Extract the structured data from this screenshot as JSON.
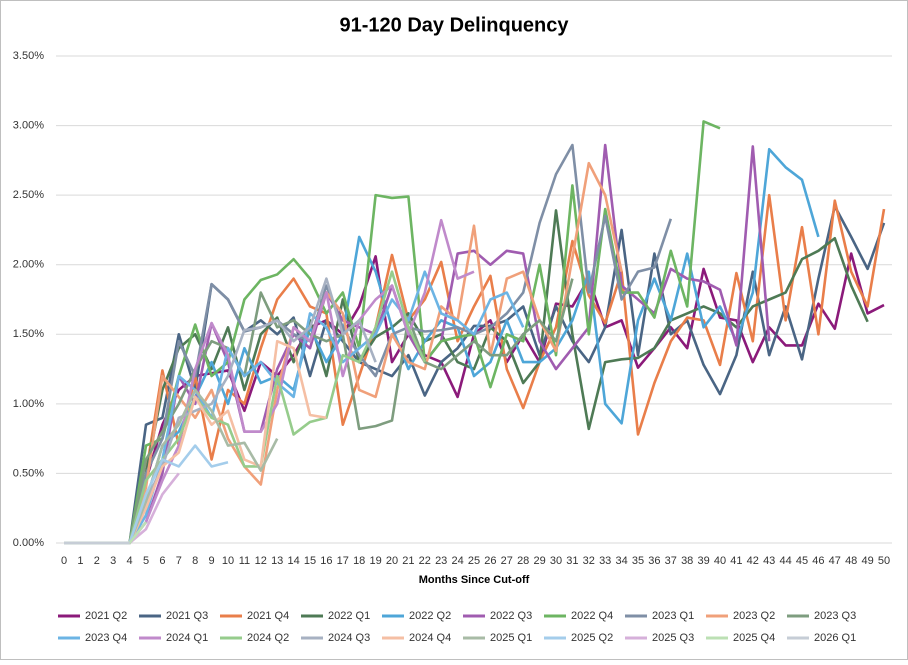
{
  "chart_data": {
    "type": "line",
    "title": "91-120 Day Delinquency",
    "x_label": "Months Since Cut-off",
    "x": [
      0,
      1,
      2,
      3,
      4,
      5,
      6,
      7,
      8,
      9,
      10,
      11,
      12,
      13,
      14,
      15,
      16,
      17,
      18,
      19,
      20,
      21,
      22,
      23,
      24,
      25,
      26,
      27,
      28,
      29,
      30,
      31,
      32,
      33,
      34,
      35,
      36,
      37,
      38,
      39,
      40,
      41,
      42,
      43,
      44,
      45,
      46,
      47,
      48,
      49,
      50
    ],
    "xlim": [
      0,
      50
    ],
    "ylim": [
      0,
      3.5
    ],
    "yticks": [
      {
        "value": 0,
        "label": "0.00%"
      },
      {
        "value": 0.5,
        "label": "0.50%"
      },
      {
        "value": 1,
        "label": "1.00%"
      },
      {
        "value": 1.5,
        "label": "1.50%"
      },
      {
        "value": 2,
        "label": "2.00%"
      },
      {
        "value": 2.5,
        "label": "2.50%"
      },
      {
        "value": 3,
        "label": "3.00%"
      },
      {
        "value": 3.5,
        "label": "3.50%"
      }
    ],
    "grid": true,
    "legend": "bottom",
    "series": [
      {
        "name": "2021 Q2",
        "color": "#8b1a7a",
        "values": [
          0,
          0,
          0,
          0,
          0,
          0.45,
          0.85,
          1.1,
          1.2,
          1.22,
          1.24,
          0.95,
          1.3,
          1.2,
          1.35,
          1.55,
          1.6,
          1.5,
          1.7,
          2.06,
          1.3,
          1.5,
          1.35,
          1.3,
          1.05,
          1.5,
          1.6,
          1.3,
          1.5,
          1.3,
          1.72,
          1.7,
          1.9,
          1.55,
          1.6,
          1.26,
          1.4,
          1.55,
          1.4,
          1.97,
          1.62,
          1.6,
          1.3,
          1.55,
          1.42,
          1.42,
          1.72,
          1.54,
          2.08,
          1.65,
          1.71
        ]
      },
      {
        "name": "2021 Q3",
        "color": "#4a6584",
        "values": [
          0,
          0,
          0,
          0,
          0,
          0.85,
          0.9,
          1.5,
          1.1,
          1.86,
          1.75,
          1.52,
          1.6,
          1.5,
          1.62,
          1.2,
          1.6,
          1.45,
          1.3,
          1.25,
          1.2,
          1.35,
          1.06,
          1.3,
          1.4,
          1.56,
          1.56,
          1.6,
          1.7,
          1.35,
          1.7,
          1.45,
          1.3,
          1.55,
          2.25,
          1.35,
          2.08,
          1.5,
          1.6,
          1.28,
          1.07,
          1.35,
          1.95,
          1.35,
          1.7,
          1.32,
          1.9,
          2.42,
          2.2,
          1.97,
          2.3
        ]
      },
      {
        "name": "2021 Q4",
        "color": "#e97e4a",
        "values": [
          0,
          0,
          0,
          0,
          0,
          0.5,
          1.24,
          0.7,
          1.2,
          0.6,
          1.1,
          1.0,
          1.4,
          1.75,
          1.9,
          1.7,
          1.65,
          0.85,
          1.2,
          1.55,
          2.07,
          1.6,
          1.75,
          2.02,
          1.45,
          1.7,
          1.92,
          1.25,
          0.97,
          1.3,
          1.55,
          2.17,
          1.78,
          1.58,
          1.95,
          0.78,
          1.15,
          1.45,
          1.62,
          1.6,
          1.28,
          1.94,
          1.45,
          2.5,
          1.6,
          2.27,
          1.5,
          2.46,
          1.95,
          1.7,
          2.4
        ]
      },
      {
        "name": "2022 Q1",
        "color": "#4e7a55",
        "values": [
          0,
          0,
          0,
          0,
          0,
          0.5,
          1.1,
          1.4,
          1.5,
          1.25,
          1.55,
          1.1,
          1.5,
          1.62,
          1.3,
          1.6,
          1.2,
          1.75,
          1.3,
          1.48,
          1.55,
          1.65,
          1.45,
          1.5,
          1.3,
          1.25,
          1.55,
          1.45,
          1.15,
          1.3,
          2.39,
          1.5,
          0.82,
          1.3,
          1.32,
          1.33,
          1.4,
          1.6,
          1.65,
          1.7,
          1.65,
          1.55,
          1.7,
          1.75,
          1.8,
          2.04,
          2.1,
          2.19,
          1.85,
          1.59,
          null
        ]
      },
      {
        "name": "2022 Q2",
        "color": "#4ea6d8",
        "values": [
          0,
          0,
          0,
          0,
          0,
          0.3,
          0.7,
          0.8,
          1.05,
          1.3,
          1.0,
          1.4,
          1.15,
          1.2,
          1.1,
          1.55,
          1.3,
          1.5,
          2.2,
          1.95,
          1.55,
          1.25,
          1.45,
          1.6,
          1.55,
          1.2,
          1.3,
          1.6,
          1.3,
          1.3,
          1.4,
          1.6,
          1.95,
          1.0,
          0.86,
          1.6,
          1.9,
          1.6,
          2.08,
          1.55,
          1.7,
          1.45,
          1.8,
          2.83,
          2.7,
          2.61,
          2.2,
          null,
          null,
          null,
          null
        ]
      },
      {
        "name": "2022 Q3",
        "color": "#a05cb0",
        "values": [
          0,
          0,
          0,
          0,
          0,
          0.15,
          0.5,
          1.2,
          1.0,
          1.58,
          1.3,
          0.8,
          0.8,
          1.25,
          1.5,
          1.4,
          1.8,
          1.6,
          1.55,
          1.5,
          1.85,
          1.5,
          1.3,
          1.45,
          2.08,
          2.1,
          2.0,
          2.1,
          2.08,
          1.45,
          1.25,
          1.4,
          1.55,
          2.86,
          1.85,
          1.75,
          1.65,
          1.97,
          1.9,
          1.88,
          1.82,
          1.42,
          2.85,
          1.45,
          null,
          null,
          null,
          null,
          null,
          null,
          null
        ]
      },
      {
        "name": "2022 Q4",
        "color": "#6db562",
        "values": [
          0,
          0,
          0,
          0,
          0,
          0.7,
          0.75,
          1.2,
          1.57,
          1.2,
          1.3,
          1.75,
          1.89,
          1.93,
          2.04,
          1.9,
          1.65,
          1.8,
          1.4,
          2.5,
          2.48,
          2.49,
          1.3,
          1.45,
          1.48,
          1.5,
          1.12,
          1.5,
          1.45,
          2.0,
          1.35,
          2.57,
          1.5,
          2.4,
          1.8,
          1.8,
          1.62,
          2.1,
          1.7,
          3.03,
          2.98,
          null,
          null,
          null,
          null,
          null,
          null,
          null,
          null,
          null,
          null
        ]
      },
      {
        "name": "2023 Q1",
        "color": "#7f8fa6",
        "values": [
          0,
          0,
          0,
          0,
          0,
          0.5,
          0.75,
          1.45,
          1.2,
          1.86,
          1.75,
          1.52,
          1.55,
          1.6,
          1.5,
          1.45,
          1.85,
          1.55,
          1.35,
          1.2,
          1.5,
          1.55,
          1.52,
          1.53,
          1.55,
          1.5,
          1.55,
          1.65,
          1.8,
          2.3,
          2.65,
          2.86,
          1.8,
          2.35,
          1.75,
          1.95,
          1.98,
          2.33,
          null,
          null,
          null,
          null,
          null,
          null,
          null,
          null,
          null,
          null,
          null,
          null,
          null
        ]
      },
      {
        "name": "2023 Q2",
        "color": "#f0a07a",
        "values": [
          0,
          0,
          0,
          0,
          0,
          0.4,
          1.2,
          1.05,
          0.9,
          1.1,
          0.75,
          0.55,
          0.42,
          1.1,
          1.55,
          1.45,
          1.8,
          1.65,
          1.1,
          1.05,
          1.5,
          1.3,
          1.25,
          1.7,
          1.6,
          2.28,
          1.35,
          1.9,
          1.95,
          1.6,
          1.38,
          2.05,
          2.73,
          2.5,
          1.95,
          null,
          null,
          null,
          null,
          null,
          null,
          null,
          null,
          null,
          null,
          null,
          null,
          null,
          null,
          null,
          null
        ]
      },
      {
        "name": "2023 Q3",
        "color": "#7e9d7f",
        "values": [
          0,
          0,
          0,
          0,
          0,
          0.6,
          0.8,
          1.0,
          1.25,
          1.45,
          1.4,
          1.2,
          1.8,
          1.55,
          1.6,
          1.5,
          1.45,
          1.5,
          0.82,
          0.84,
          0.88,
          1.62,
          1.3,
          1.25,
          1.35,
          1.45,
          1.35,
          1.35,
          1.5,
          1.6,
          1.45,
          1.9,
          null,
          null,
          null,
          null,
          null,
          null,
          null,
          null,
          null,
          null,
          null,
          null,
          null,
          null,
          null,
          null,
          null,
          null,
          null
        ]
      },
      {
        "name": "2023 Q4",
        "color": "#6cb4e4",
        "values": [
          0,
          0,
          0,
          0,
          0,
          0.2,
          0.6,
          1.2,
          1.1,
          0.9,
          1.4,
          1.2,
          1.3,
          1.15,
          1.05,
          1.65,
          1.55,
          1.3,
          1.4,
          1.5,
          1.75,
          1.6,
          1.95,
          1.65,
          1.6,
          1.5,
          1.75,
          1.8,
          1.55,
          null,
          null,
          null,
          null,
          null,
          null,
          null,
          null,
          null,
          null,
          null,
          null,
          null,
          null,
          null,
          null,
          null,
          null,
          null,
          null,
          null,
          null
        ]
      },
      {
        "name": "2024 Q1",
        "color": "#c08acb",
        "values": [
          0,
          0,
          0,
          0,
          0,
          0.15,
          0.45,
          0.7,
          1.25,
          1.58,
          1.35,
          0.8,
          0.8,
          1.0,
          1.55,
          1.45,
          1.8,
          1.2,
          1.6,
          1.75,
          1.85,
          1.5,
          1.8,
          2.32,
          1.9,
          1.95,
          null,
          null,
          null,
          null,
          null,
          null,
          null,
          null,
          null,
          null,
          null,
          null,
          null,
          null,
          null,
          null,
          null,
          null,
          null,
          null,
          null,
          null,
          null,
          null,
          null
        ]
      },
      {
        "name": "2024 Q2",
        "color": "#96cc8c",
        "values": [
          0,
          0,
          0,
          0,
          0,
          0.45,
          0.6,
          0.75,
          1.05,
          0.9,
          0.85,
          0.55,
          0.55,
          1.2,
          0.78,
          0.87,
          0.9,
          1.35,
          1.3,
          1.55,
          1.95,
          1.55,
          1.3,
          null,
          null,
          null,
          null,
          null,
          null,
          null,
          null,
          null,
          null,
          null,
          null,
          null,
          null,
          null,
          null,
          null,
          null,
          null,
          null,
          null,
          null,
          null,
          null,
          null,
          null,
          null,
          null
        ]
      },
      {
        "name": "2024 Q3",
        "color": "#a7b1c2",
        "values": [
          0,
          0,
          0,
          0,
          0,
          0.3,
          0.55,
          0.9,
          0.95,
          1.0,
          1.2,
          1.53,
          1.55,
          1.6,
          1.45,
          1.55,
          1.9,
          1.5,
          1.6,
          1.3,
          null,
          null,
          null,
          null,
          null,
          null,
          null,
          null,
          null,
          null,
          null,
          null,
          null,
          null,
          null,
          null,
          null,
          null,
          null,
          null,
          null,
          null,
          null,
          null,
          null,
          null,
          null,
          null,
          null,
          null,
          null
        ]
      },
      {
        "name": "2024 Q4",
        "color": "#f5bfa4",
        "values": [
          0,
          0,
          0,
          0,
          0,
          0.25,
          0.55,
          0.65,
          1.05,
          0.85,
          0.95,
          0.6,
          0.55,
          1.45,
          1.4,
          0.92,
          0.9,
          null,
          null,
          null,
          null,
          null,
          null,
          null,
          null,
          null,
          null,
          null,
          null,
          null,
          null,
          null,
          null,
          null,
          null,
          null,
          null,
          null,
          null,
          null,
          null,
          null,
          null,
          null,
          null,
          null,
          null,
          null,
          null,
          null,
          null
        ]
      },
      {
        "name": "2025 Q1",
        "color": "#a8bba6",
        "values": [
          0,
          0,
          0,
          0,
          0,
          0.3,
          0.7,
          0.85,
          1.1,
          0.95,
          0.7,
          0.72,
          0.52,
          0.75,
          null,
          null,
          null,
          null,
          null,
          null,
          null,
          null,
          null,
          null,
          null,
          null,
          null,
          null,
          null,
          null,
          null,
          null,
          null,
          null,
          null,
          null,
          null,
          null,
          null,
          null,
          null,
          null,
          null,
          null,
          null,
          null,
          null,
          null,
          null,
          null,
          null
        ]
      },
      {
        "name": "2025 Q2",
        "color": "#a4cdeb",
        "values": [
          0,
          0,
          0,
          0,
          0,
          0.35,
          0.6,
          0.55,
          0.7,
          0.55,
          0.58,
          null,
          null,
          null,
          null,
          null,
          null,
          null,
          null,
          null,
          null,
          null,
          null,
          null,
          null,
          null,
          null,
          null,
          null,
          null,
          null,
          null,
          null,
          null,
          null,
          null,
          null,
          null,
          null,
          null,
          null,
          null,
          null,
          null,
          null,
          null,
          null,
          null,
          null,
          null,
          null
        ]
      },
      {
        "name": "2025 Q3",
        "color": "#d6b0da",
        "values": [
          0,
          0,
          0,
          0,
          0,
          0.1,
          0.35,
          0.5,
          null,
          null,
          null,
          null,
          null,
          null,
          null,
          null,
          null,
          null,
          null,
          null,
          null,
          null,
          null,
          null,
          null,
          null,
          null,
          null,
          null,
          null,
          null,
          null,
          null,
          null,
          null,
          null,
          null,
          null,
          null,
          null,
          null,
          null,
          null,
          null,
          null,
          null,
          null,
          null,
          null,
          null,
          null
        ]
      },
      {
        "name": "2025 Q4",
        "color": "#bce0b4",
        "values": [
          0,
          0,
          0,
          0,
          0,
          0.15,
          null,
          null,
          null,
          null,
          null,
          null,
          null,
          null,
          null,
          null,
          null,
          null,
          null,
          null,
          null,
          null,
          null,
          null,
          null,
          null,
          null,
          null,
          null,
          null,
          null,
          null,
          null,
          null,
          null,
          null,
          null,
          null,
          null,
          null,
          null,
          null,
          null,
          null,
          null,
          null,
          null,
          null,
          null,
          null,
          null
        ]
      },
      {
        "name": "2026 Q1",
        "color": "#c6cdd6",
        "values": [
          0,
          0,
          0,
          0,
          0,
          null,
          null,
          null,
          null,
          null,
          null,
          null,
          null,
          null,
          null,
          null,
          null,
          null,
          null,
          null,
          null,
          null,
          null,
          null,
          null,
          null,
          null,
          null,
          null,
          null,
          null,
          null,
          null,
          null,
          null,
          null,
          null,
          null,
          null,
          null,
          null,
          null,
          null,
          null,
          null,
          null,
          null,
          null,
          null,
          null,
          null
        ]
      }
    ]
  }
}
